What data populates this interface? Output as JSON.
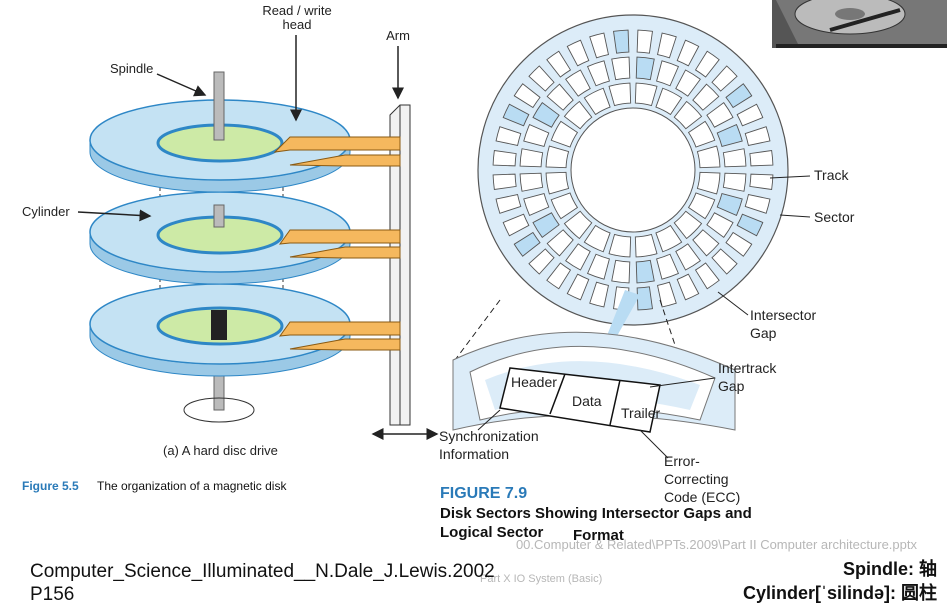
{
  "left_figure": {
    "label_rw_head_line1": "Read / write",
    "label_rw_head_line2": "head",
    "label_arm": "Arm",
    "label_spindle": "Spindle",
    "label_cylinder": "Cylinder",
    "subcaption": "(a) A hard disc drive",
    "figure_number": "Figure 5.5",
    "figure_caption": "The organization of a magnetic disk"
  },
  "right_figure": {
    "label_track": "Track",
    "label_sector": "Sector",
    "label_intersector_1": "Intersector",
    "label_intersector_2": "Gap",
    "label_intertrack_1": "Intertrack",
    "label_intertrack_2": "Gap",
    "label_header": "Header",
    "label_data": "Data",
    "label_trailer": "Trailer",
    "label_sync_1": "Synchronization",
    "label_sync_2": "Information",
    "label_ecc_1": "Error-",
    "label_ecc_2": "Correcting",
    "label_ecc_3": "Code (ECC)",
    "figure_number": "FIGURE 7.9",
    "figure_title_1": "Disk Sectors Showing Intersector Gaps and",
    "figure_title_2": "Logical Sector",
    "figure_title_3": "Format"
  },
  "footer": {
    "path_watermark": "00.Computer & Related\\PPTs.2009\\Part II Computer architecture.pptx",
    "part_watermark": "Part X IO System (Basic)",
    "citation_line1": "Computer_Science_Illuminated__N.Dale_J.Lewis.2002",
    "citation_line2": "P156",
    "gloss_spindle": "Spindle: 轴",
    "gloss_cylinder": "Cylinder[ˈsilində]: 圆柱"
  },
  "colors": {
    "platter": "#c4e2f3",
    "platter_edge": "#2e87c6",
    "hub": "#cdeaa6",
    "head": "#f5b85e",
    "caption_blue": "#2a7ab8",
    "track_highlight": "#b9dcf3"
  }
}
